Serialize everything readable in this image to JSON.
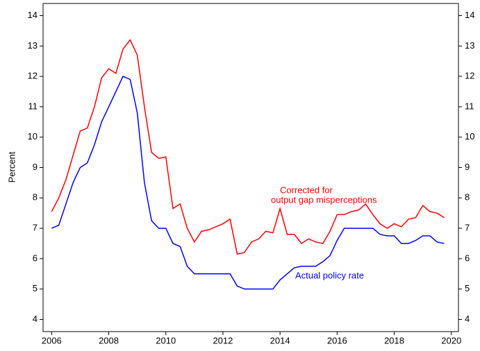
{
  "chart_data": {
    "type": "line",
    "y_label": "Percent",
    "x": [
      2006,
      2006.25,
      2006.5,
      2006.75,
      2007,
      2007.25,
      2007.5,
      2007.75,
      2008,
      2008.25,
      2008.5,
      2008.75,
      2009,
      2009.25,
      2009.5,
      2009.75,
      2010,
      2010.25,
      2010.5,
      2010.75,
      2011,
      2011.25,
      2011.5,
      2011.75,
      2012,
      2012.25,
      2012.5,
      2012.75,
      2013,
      2013.25,
      2013.5,
      2013.75,
      2014,
      2014.25,
      2014.5,
      2014.75,
      2015,
      2015.25,
      2015.5,
      2015.75,
      2016,
      2016.25,
      2016.5,
      2016.75,
      2017,
      2017.25,
      2017.5,
      2017.75,
      2018,
      2018.25,
      2018.5,
      2018.75,
      2019,
      2019.25,
      2019.5,
      2019.75
    ],
    "series": [
      {
        "name": "Corrected for output gap misperceptions",
        "color": "#ff0000",
        "values": [
          7.55,
          8.0,
          8.6,
          9.4,
          10.2,
          10.3,
          11.0,
          11.95,
          12.25,
          12.1,
          12.9,
          13.2,
          12.7,
          11.0,
          9.5,
          9.3,
          9.35,
          7.65,
          7.8,
          7.0,
          6.55,
          6.9,
          6.95,
          7.05,
          7.15,
          7.3,
          6.15,
          6.2,
          6.55,
          6.65,
          6.9,
          6.85,
          7.65,
          6.8,
          6.8,
          6.5,
          6.65,
          6.55,
          6.5,
          6.9,
          7.45,
          7.45,
          7.55,
          7.6,
          7.8,
          7.45,
          7.15,
          7.0,
          7.15,
          7.05,
          7.3,
          7.35,
          7.75,
          7.55,
          7.5,
          7.35
        ]
      },
      {
        "name": "Actual policy rate",
        "color": "#0000ff",
        "values": [
          7.0,
          7.1,
          7.8,
          8.5,
          9.0,
          9.15,
          9.75,
          10.5,
          11.0,
          11.5,
          12.0,
          11.9,
          10.8,
          8.5,
          7.25,
          7.0,
          7.0,
          6.5,
          6.4,
          5.75,
          5.5,
          5.5,
          5.5,
          5.5,
          5.5,
          5.5,
          5.1,
          5.0,
          5.0,
          5.0,
          5.0,
          5.0,
          5.3,
          5.5,
          5.7,
          5.75,
          5.75,
          5.75,
          5.9,
          6.1,
          6.6,
          7.0,
          7.0,
          7.0,
          7.0,
          7.0,
          6.8,
          6.75,
          6.75,
          6.5,
          6.5,
          6.6,
          6.75,
          6.75,
          6.55,
          6.5
        ]
      }
    ],
    "annotations": [
      [
        "Corrected for",
        "output gap misperceptions"
      ],
      [
        "Actual policy rate"
      ]
    ],
    "xlim": [
      2005.7,
      2020.25
    ],
    "xticks": [
      2006,
      2008,
      2010,
      2012,
      2014,
      2016,
      2018,
      2020
    ],
    "ylim": [
      3.6,
      14.4
    ],
    "yticks": [
      4,
      5,
      6,
      7,
      8,
      9,
      10,
      11,
      12,
      13,
      14
    ]
  }
}
